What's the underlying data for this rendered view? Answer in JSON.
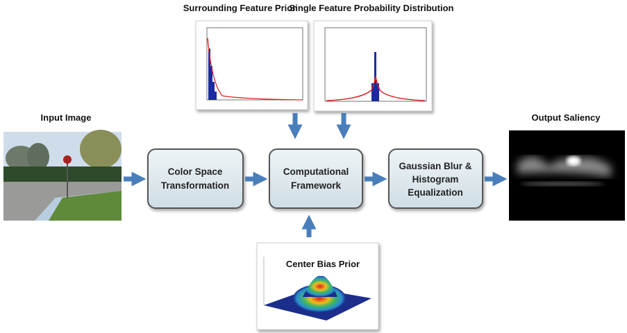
{
  "labels": {
    "input_image": "Input Image",
    "output_saliency": "Output Saliency",
    "surrounding_prior": "Surrounding Feature Prior",
    "single_feature": "Single Feature Probability Distribution",
    "center_bias": "Center Bias Prior"
  },
  "nodes": [
    {
      "lines": [
        "Color Space",
        "Transformation"
      ]
    },
    {
      "lines": [
        "Computational",
        "Framework"
      ]
    },
    {
      "lines": [
        "Gaussian Blur &",
        "Histogram",
        "Equalization"
      ]
    }
  ]
}
